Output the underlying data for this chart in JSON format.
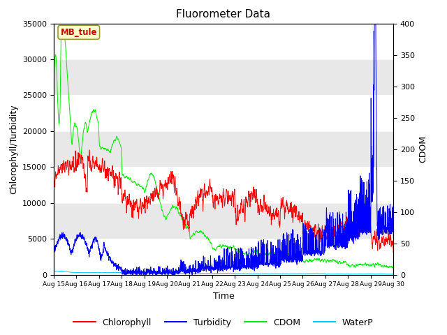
{
  "title": "Fluorometer Data",
  "xlabel": "Time",
  "ylabel_left": "Chlorophyll/Turbidity",
  "ylabel_right": "CDOM",
  "annotation": "MB_tule",
  "ylim_left": [
    0,
    35000
  ],
  "ylim_right": [
    0,
    400
  ],
  "yticks_left": [
    0,
    5000,
    10000,
    15000,
    20000,
    25000,
    30000,
    35000
  ],
  "yticks_right": [
    0,
    50,
    100,
    150,
    200,
    250,
    300,
    350,
    400
  ],
  "xtick_labels": [
    "Aug 15",
    "Aug 16",
    "Aug 17",
    "Aug 18",
    "Aug 19",
    "Aug 20",
    "Aug 21",
    "Aug 22",
    "Aug 23",
    "Aug 24",
    "Aug 25",
    "Aug 26",
    "Aug 27",
    "Aug 28",
    "Aug 29",
    "Aug 30"
  ],
  "colors": {
    "Chlorophyll": "#ff0000",
    "Turbidity": "#0000ff",
    "CDOM": "#00ee00",
    "WaterP": "#00ccff"
  },
  "band_colors": [
    "#ffffff",
    "#e8e8e8"
  ],
  "annotation_fg": "#cc0000",
  "annotation_bg": "#ffffcc",
  "annotation_edge": "#999933"
}
